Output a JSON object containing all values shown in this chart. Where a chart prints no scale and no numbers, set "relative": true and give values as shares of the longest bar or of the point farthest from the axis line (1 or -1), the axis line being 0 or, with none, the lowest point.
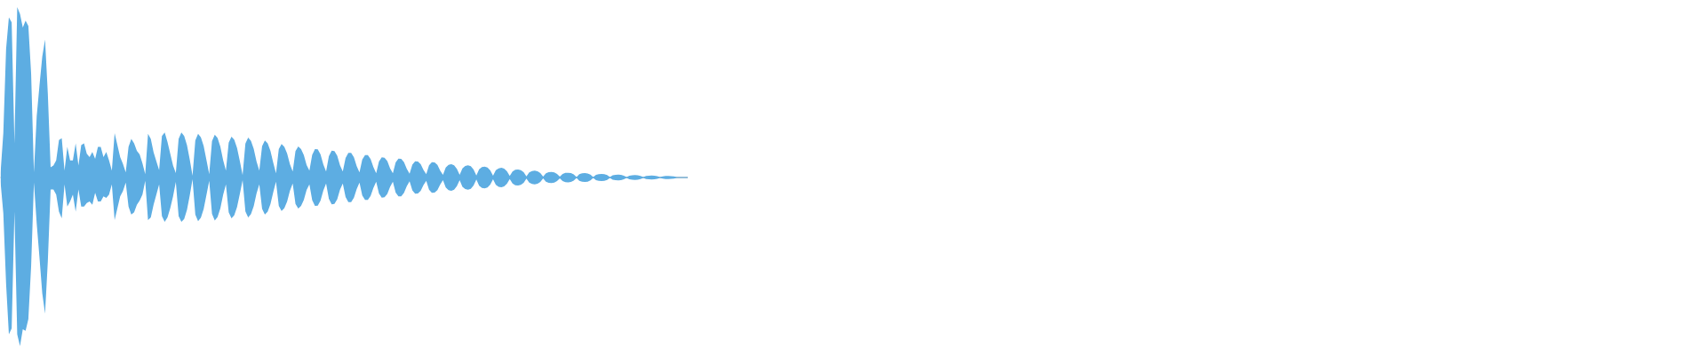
{
  "chart_data": {
    "type": "area",
    "relative": true,
    "categories": [
      null,
      null,
      null,
      null,
      null,
      null,
      null,
      null,
      null,
      null,
      null,
      null,
      null,
      null,
      null,
      null,
      null,
      null,
      null,
      null,
      null,
      null,
      null,
      null,
      null,
      null,
      null,
      null,
      null,
      null,
      null,
      null,
      null,
      null,
      null,
      null,
      null,
      null,
      null,
      null,
      null,
      null,
      null,
      null,
      null,
      null,
      null,
      null,
      null,
      null,
      null,
      null,
      null,
      null,
      null,
      null,
      null,
      null,
      null,
      null,
      null,
      null,
      null,
      null,
      null,
      null,
      null,
      null,
      null,
      null,
      null,
      null,
      null,
      null,
      null,
      null,
      null,
      null,
      null,
      null,
      null,
      null,
      null,
      null,
      null,
      null,
      null,
      null,
      null,
      null,
      null,
      null,
      null,
      null,
      null,
      null,
      null,
      null,
      null,
      null,
      null,
      null,
      null,
      null,
      null,
      null,
      null,
      null,
      null,
      null,
      null,
      null,
      null,
      null,
      null,
      null,
      null,
      null,
      null,
      null,
      null,
      null,
      null,
      null,
      null,
      null,
      null,
      null,
      null,
      null,
      null,
      null,
      null,
      null,
      null,
      null,
      null,
      null,
      null,
      null,
      null,
      null,
      null,
      null,
      null,
      null,
      null,
      null,
      null,
      null,
      null,
      null,
      null,
      null,
      null,
      null,
      null,
      null,
      null,
      null,
      null,
      null,
      null,
      null,
      null,
      null,
      null,
      null,
      null,
      null,
      null,
      null,
      null,
      null,
      null,
      null,
      null,
      null,
      null,
      null,
      null,
      null,
      null,
      null,
      null,
      null,
      null,
      null,
      null,
      null,
      null,
      null,
      null,
      null,
      null,
      null,
      null,
      null,
      null,
      null,
      null,
      null,
      null,
      null,
      null,
      null,
      null,
      null,
      null,
      null,
      null,
      null,
      null,
      null,
      null,
      null,
      null,
      null,
      null,
      null,
      null,
      null,
      null,
      null,
      null,
      null,
      null,
      null,
      null,
      null,
      null,
      null,
      null,
      null,
      null,
      null,
      null,
      null,
      null,
      null,
      null,
      null,
      null,
      null,
      null,
      null,
      null,
      null
    ],
    "series": [
      {
        "color": "#5dade2",
        "values": [
          0.026,
          0.26,
          0.755,
          0.94,
          0.91,
          0.2,
          1.0,
          0.96,
          0.88,
          0.92,
          0.89,
          0.61,
          0.03,
          0.36,
          0.54,
          0.71,
          0.81,
          0.49,
          0.06,
          0.07,
          0.1,
          0.22,
          0.23,
          0.04,
          0.18,
          0.1,
          0.1,
          0.2,
          0.07,
          0.19,
          0.2,
          0.14,
          0.12,
          0.15,
          0.11,
          0.18,
          0.18,
          0.12,
          0.15,
          0.1,
          0.04,
          0.26,
          0.19,
          0.12,
          0.08,
          0.03,
          0.18,
          0.226,
          0.2,
          0.156,
          0.135,
          0.083,
          0.02,
          0.257,
          0.226,
          0.148,
          0.095,
          0.043,
          0.243,
          0.264,
          0.208,
          0.139,
          0.07,
          0.026,
          0.226,
          0.264,
          0.243,
          0.19,
          0.105,
          0.01,
          0.218,
          0.257,
          0.236,
          0.185,
          0.103,
          0.02,
          0.214,
          0.252,
          0.232,
          0.181,
          0.101,
          0.04,
          0.204,
          0.24,
          0.221,
          0.173,
          0.096,
          0.015,
          0.199,
          0.234,
          0.215,
          0.168,
          0.094,
          0.04,
          0.184,
          0.217,
          0.2,
          0.156,
          0.087,
          0.025,
          0.167,
          0.196,
          0.18,
          0.141,
          0.078,
          0.035,
          0.155,
          0.182,
          0.167,
          0.131,
          0.073,
          0.04,
          0.133,
          0.167,
          0.165,
          0.136,
          0.077,
          0.035,
          0.125,
          0.157,
          0.155,
          0.128,
          0.072,
          0.035,
          0.115,
          0.145,
          0.144,
          0.118,
          0.067,
          0.03,
          0.105,
          0.132,
          0.131,
          0.108,
          0.061,
          0.025,
          0.094,
          0.118,
          0.116,
          0.096,
          0.054,
          0.025,
          0.088,
          0.111,
          0.11,
          0.09,
          0.051,
          0.022,
          0.076,
          0.095,
          0.094,
          0.078,
          0.044,
          0.02,
          0.072,
          0.09,
          0.089,
          0.074,
          0.041,
          0.016,
          0.059,
          0.074,
          0.078,
          0.072,
          0.051,
          0.016,
          0.054,
          0.068,
          0.072,
          0.066,
          0.047,
          0.012,
          0.048,
          0.061,
          0.064,
          0.059,
          0.042,
          0.011,
          0.043,
          0.054,
          0.057,
          0.052,
          0.037,
          0.009,
          0.035,
          0.045,
          0.047,
          0.043,
          0.031,
          0.007,
          0.03,
          0.038,
          0.04,
          0.037,
          0.026,
          0.005,
          0.025,
          0.031,
          0.033,
          0.03,
          0.021,
          0.005,
          0.021,
          0.027,
          0.028,
          0.026,
          0.018,
          0.003,
          0.02,
          0.025,
          0.026,
          0.024,
          0.017,
          0.003,
          0.016,
          0.02,
          0.021,
          0.019,
          0.014,
          0.003,
          0.013,
          0.016,
          0.017,
          0.016,
          0.011,
          0.003,
          0.011,
          0.013,
          0.014,
          0.013,
          0.009,
          0.003,
          0.009,
          0.011,
          0.012,
          0.011,
          0.008,
          0.003,
          0.007,
          0.009,
          0.009,
          0.008,
          0.006,
          0.003,
          0.003,
          0.003,
          0.003,
          0.003
        ]
      },
      {
        "color": "#5dade2",
        "values": [
          -0.026,
          -0.21,
          -0.625,
          -0.92,
          -0.885,
          -0.2,
          -0.92,
          -0.99,
          -0.89,
          -0.9,
          -0.83,
          -0.52,
          -0.03,
          -0.27,
          -0.47,
          -0.68,
          -0.8,
          -0.49,
          -0.07,
          -0.07,
          -0.1,
          -0.2,
          -0.24,
          -0.04,
          -0.17,
          -0.14,
          -0.1,
          -0.2,
          -0.07,
          -0.17,
          -0.17,
          -0.15,
          -0.14,
          -0.16,
          -0.09,
          -0.14,
          -0.14,
          -0.11,
          -0.12,
          -0.1,
          -0.04,
          -0.25,
          -0.18,
          -0.11,
          -0.08,
          -0.03,
          -0.17,
          -0.217,
          -0.205,
          -0.16,
          -0.135,
          -0.1,
          -0.02,
          -0.25,
          -0.234,
          -0.16,
          -0.1,
          -0.04,
          -0.226,
          -0.26,
          -0.234,
          -0.18,
          -0.11,
          -0.026,
          -0.226,
          -0.26,
          -0.243,
          -0.19,
          -0.105,
          -0.01,
          -0.218,
          -0.257,
          -0.236,
          -0.185,
          -0.103,
          -0.02,
          -0.214,
          -0.252,
          -0.232,
          -0.181,
          -0.101,
          -0.04,
          -0.204,
          -0.24,
          -0.221,
          -0.173,
          -0.096,
          -0.015,
          -0.199,
          -0.234,
          -0.215,
          -0.168,
          -0.094,
          -0.04,
          -0.184,
          -0.217,
          -0.2,
          -0.156,
          -0.087,
          -0.025,
          -0.167,
          -0.196,
          -0.18,
          -0.141,
          -0.078,
          -0.035,
          -0.155,
          -0.182,
          -0.167,
          -0.131,
          -0.073,
          -0.04,
          -0.133,
          -0.167,
          -0.165,
          -0.136,
          -0.077,
          -0.035,
          -0.125,
          -0.157,
          -0.155,
          -0.128,
          -0.072,
          -0.035,
          -0.115,
          -0.145,
          -0.144,
          -0.118,
          -0.067,
          -0.03,
          -0.105,
          -0.132,
          -0.131,
          -0.108,
          -0.061,
          -0.025,
          -0.094,
          -0.118,
          -0.116,
          -0.096,
          -0.054,
          -0.025,
          -0.088,
          -0.111,
          -0.11,
          -0.09,
          -0.051,
          -0.022,
          -0.076,
          -0.095,
          -0.094,
          -0.078,
          -0.044,
          -0.02,
          -0.072,
          -0.09,
          -0.089,
          -0.074,
          -0.041,
          -0.016,
          -0.059,
          -0.074,
          -0.078,
          -0.072,
          -0.051,
          -0.016,
          -0.054,
          -0.068,
          -0.072,
          -0.066,
          -0.047,
          -0.012,
          -0.048,
          -0.061,
          -0.064,
          -0.059,
          -0.042,
          -0.011,
          -0.043,
          -0.054,
          -0.057,
          -0.052,
          -0.037,
          -0.009,
          -0.035,
          -0.045,
          -0.047,
          -0.043,
          -0.031,
          -0.007,
          -0.03,
          -0.038,
          -0.04,
          -0.037,
          -0.026,
          -0.005,
          -0.025,
          -0.031,
          -0.033,
          -0.03,
          -0.021,
          -0.005,
          -0.021,
          -0.027,
          -0.028,
          -0.026,
          -0.018,
          -0.003,
          -0.02,
          -0.025,
          -0.026,
          -0.024,
          -0.017,
          -0.003,
          -0.016,
          -0.02,
          -0.021,
          -0.019,
          -0.014,
          -0.003,
          -0.013,
          -0.016,
          -0.017,
          -0.016,
          -0.011,
          -0.003,
          -0.011,
          -0.013,
          -0.014,
          -0.013,
          -0.009,
          -0.003,
          -0.009,
          -0.011,
          -0.012,
          -0.011,
          -0.008,
          -0.003,
          -0.007,
          -0.009,
          -0.009,
          -0.008,
          -0.006,
          -0.003,
          -0.003,
          -0.003,
          -0.003,
          -0.003
        ]
      }
    ]
  }
}
